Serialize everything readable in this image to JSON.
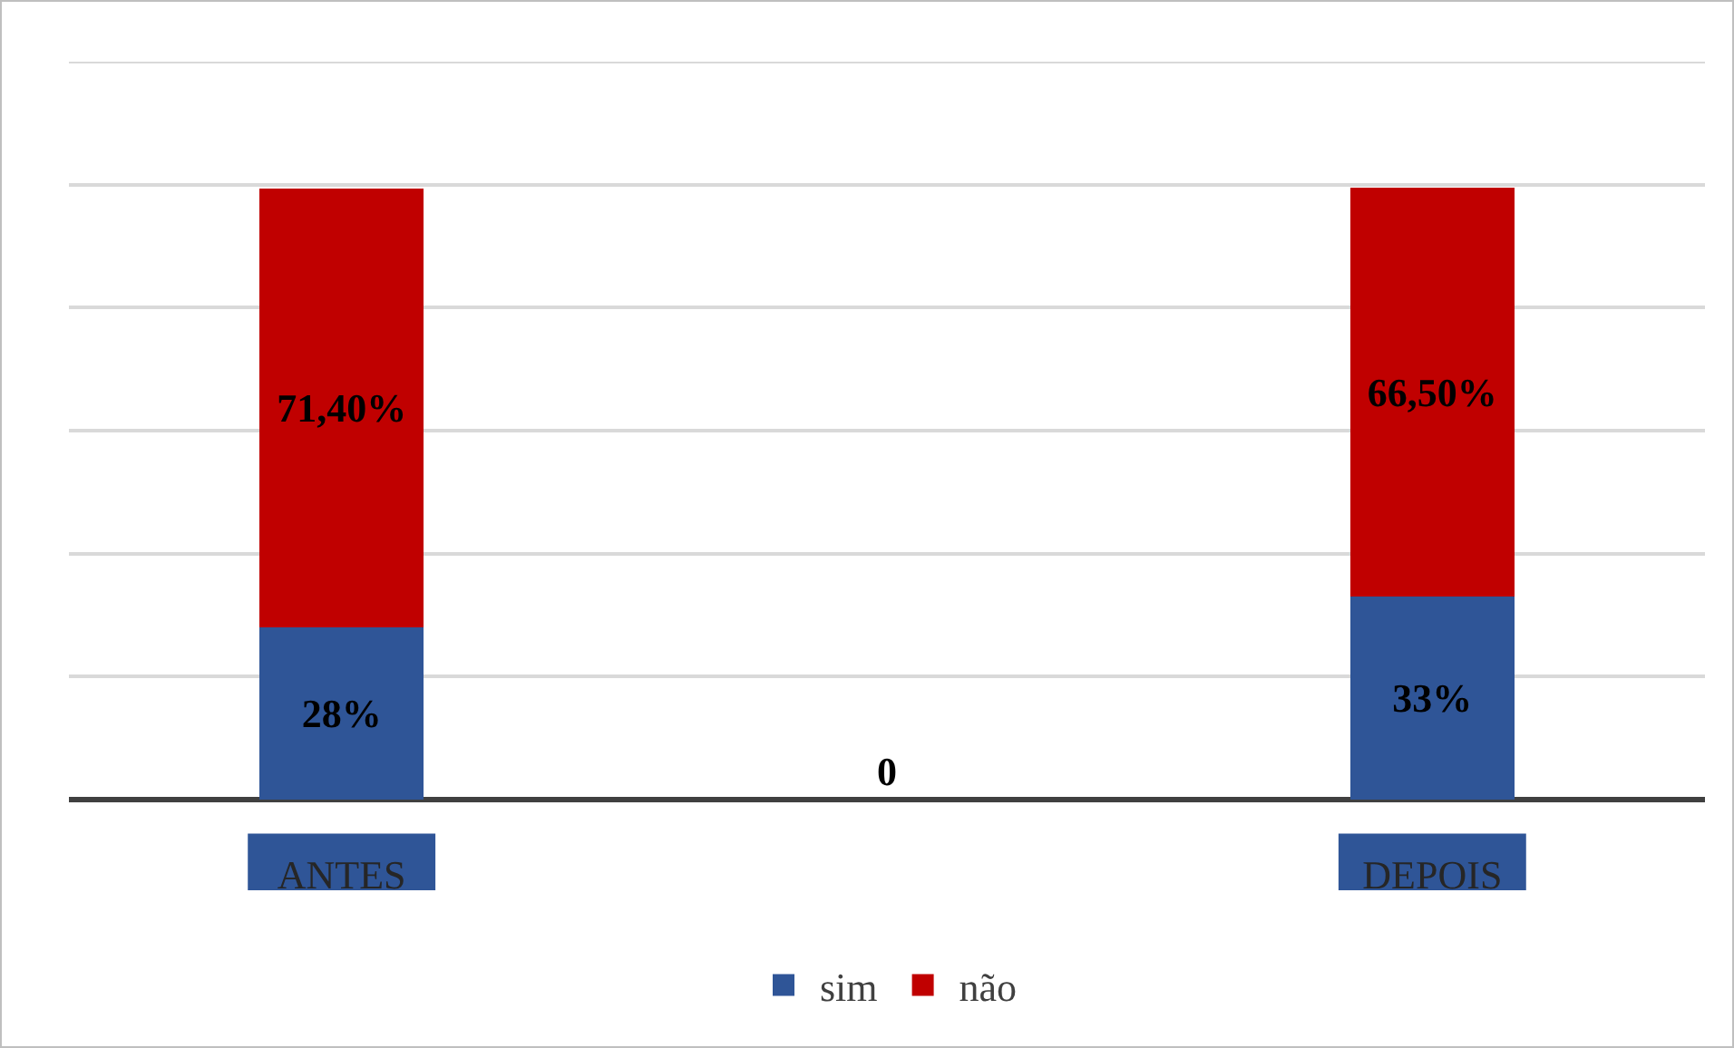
{
  "chart_data": {
    "type": "bar",
    "stacked": true,
    "categories": [
      "ANTES",
      null,
      "DEPOIS"
    ],
    "series": [
      {
        "name": "sim",
        "color": "#2f5597",
        "values": [
          28,
          0,
          33
        ],
        "value_labels": [
          "28%",
          "0",
          "33%"
        ]
      },
      {
        "name": "não",
        "color": "#c00000",
        "values": [
          71.4,
          null,
          66.5
        ],
        "value_labels": [
          "71,40%",
          null,
          "66,50%"
        ]
      }
    ],
    "ylim": [
      0,
      120
    ],
    "yticks": [
      {
        "value": 0,
        "label": null
      },
      {
        "value": 20,
        "label": null
      },
      {
        "value": 40,
        "label": null
      },
      {
        "value": 60,
        "label": null
      },
      {
        "value": 80,
        "label": null
      },
      {
        "value": 100,
        "label": null
      },
      {
        "value": 120,
        "label": null
      }
    ],
    "grid": "y",
    "legend": "bottom",
    "tick_labels": "x"
  }
}
